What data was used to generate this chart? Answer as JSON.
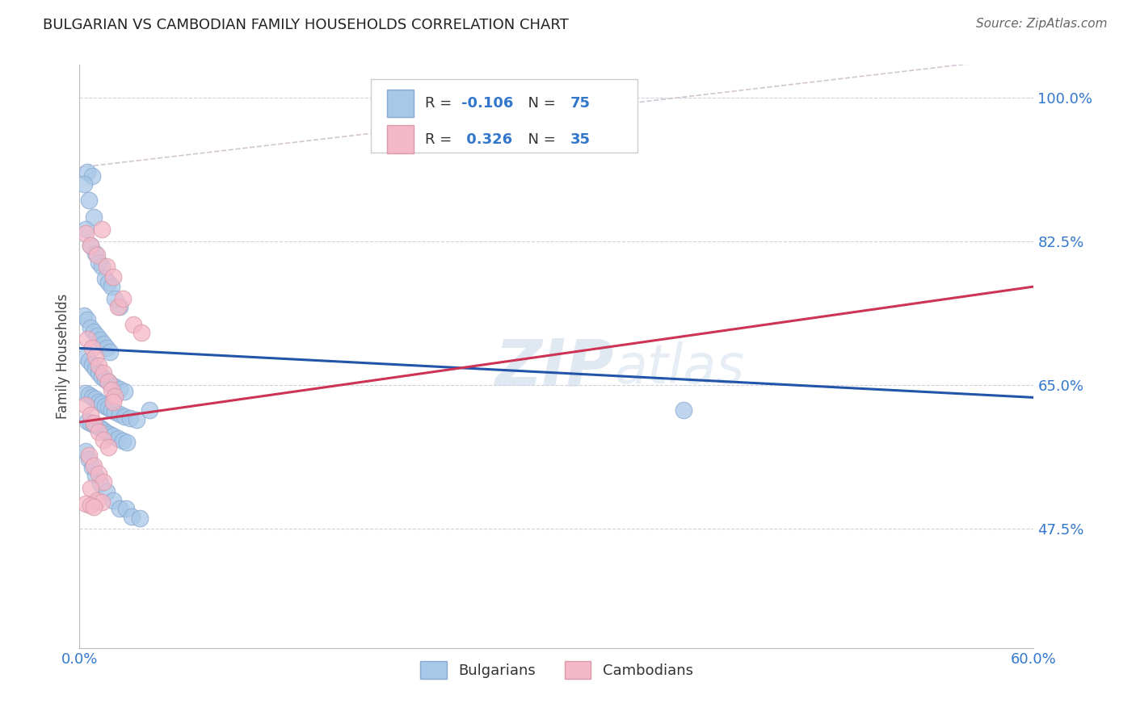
{
  "title": "BULGARIAN VS CAMBODIAN FAMILY HOUSEHOLDS CORRELATION CHART",
  "source": "Source: ZipAtlas.com",
  "ylabel_label": "Family Households",
  "x_min": 0.0,
  "x_max": 0.6,
  "y_min": 0.33,
  "y_max": 1.04,
  "y_ticks": [
    0.475,
    0.65,
    0.825,
    1.0
  ],
  "y_tick_labels": [
    "47.5%",
    "65.0%",
    "82.5%",
    "100.0%"
  ],
  "x_ticks": [
    0.0,
    0.1,
    0.2,
    0.3,
    0.4,
    0.5,
    0.6
  ],
  "x_tick_labels": [
    "0.0%",
    "",
    "",
    "",
    "",
    "",
    "60.0%"
  ],
  "blue_R": "-0.106",
  "blue_N": "75",
  "pink_R": "0.326",
  "pink_N": "35",
  "blue_dot_color": "#a8c8e8",
  "blue_dot_edge": "#88a8d0",
  "pink_dot_color": "#f4b8c8",
  "pink_dot_edge": "#d898a8",
  "blue_line_color": "#2255aa",
  "pink_line_color": "#cc3355",
  "ref_line_color": "#ccbbcc",
  "legend_text_color": "#3377cc",
  "watermark_color": "#c8d8e8",
  "blue_trend_x0": 0.0,
  "blue_trend_y0": 0.695,
  "blue_trend_x1": 0.6,
  "blue_trend_y1": 0.635,
  "pink_trend_x0": 0.0,
  "pink_trend_y0": 0.605,
  "pink_trend_x1": 0.6,
  "pink_trend_y1": 0.77,
  "blue_scatter_x": [
    0.005,
    0.008,
    0.003,
    0.006,
    0.009,
    0.004,
    0.007,
    0.01,
    0.012,
    0.014,
    0.016,
    0.018,
    0.02,
    0.022,
    0.025,
    0.003,
    0.005,
    0.007,
    0.009,
    0.011,
    0.013,
    0.015,
    0.017,
    0.019,
    0.004,
    0.006,
    0.008,
    0.01,
    0.012,
    0.014,
    0.016,
    0.018,
    0.02,
    0.022,
    0.025,
    0.028,
    0.004,
    0.006,
    0.008,
    0.01,
    0.012,
    0.014,
    0.016,
    0.018,
    0.02,
    0.022,
    0.025,
    0.028,
    0.032,
    0.036,
    0.005,
    0.007,
    0.009,
    0.011,
    0.013,
    0.015,
    0.017,
    0.019,
    0.021,
    0.024,
    0.027,
    0.03,
    0.004,
    0.006,
    0.008,
    0.01,
    0.013,
    0.017,
    0.021,
    0.025,
    0.029,
    0.033,
    0.038,
    0.044,
    0.38
  ],
  "blue_scatter_y": [
    0.91,
    0.905,
    0.895,
    0.875,
    0.855,
    0.84,
    0.82,
    0.81,
    0.8,
    0.795,
    0.78,
    0.775,
    0.77,
    0.755,
    0.745,
    0.735,
    0.73,
    0.72,
    0.715,
    0.71,
    0.705,
    0.7,
    0.695,
    0.69,
    0.685,
    0.68,
    0.675,
    0.67,
    0.665,
    0.66,
    0.657,
    0.654,
    0.65,
    0.648,
    0.645,
    0.642,
    0.64,
    0.638,
    0.635,
    0.633,
    0.63,
    0.628,
    0.625,
    0.623,
    0.62,
    0.618,
    0.615,
    0.612,
    0.61,
    0.608,
    0.606,
    0.604,
    0.602,
    0.6,
    0.598,
    0.595,
    0.592,
    0.59,
    0.588,
    0.585,
    0.582,
    0.58,
    0.57,
    0.56,
    0.55,
    0.54,
    0.53,
    0.52,
    0.51,
    0.5,
    0.5,
    0.49,
    0.488,
    0.62,
    0.62
  ],
  "pink_scatter_x": [
    0.004,
    0.007,
    0.011,
    0.014,
    0.017,
    0.021,
    0.024,
    0.027,
    0.034,
    0.039,
    0.005,
    0.008,
    0.01,
    0.012,
    0.015,
    0.018,
    0.02,
    0.022,
    0.004,
    0.007,
    0.009,
    0.012,
    0.015,
    0.018,
    0.006,
    0.009,
    0.012,
    0.015,
    0.007,
    0.011,
    0.014,
    0.004,
    0.007,
    0.009,
    0.021
  ],
  "pink_scatter_y": [
    0.835,
    0.82,
    0.808,
    0.84,
    0.795,
    0.782,
    0.745,
    0.755,
    0.724,
    0.714,
    0.706,
    0.695,
    0.685,
    0.674,
    0.665,
    0.654,
    0.644,
    0.636,
    0.626,
    0.614,
    0.604,
    0.593,
    0.583,
    0.574,
    0.565,
    0.552,
    0.542,
    0.532,
    0.524,
    0.51,
    0.508,
    0.506,
    0.504,
    0.502,
    0.63
  ]
}
